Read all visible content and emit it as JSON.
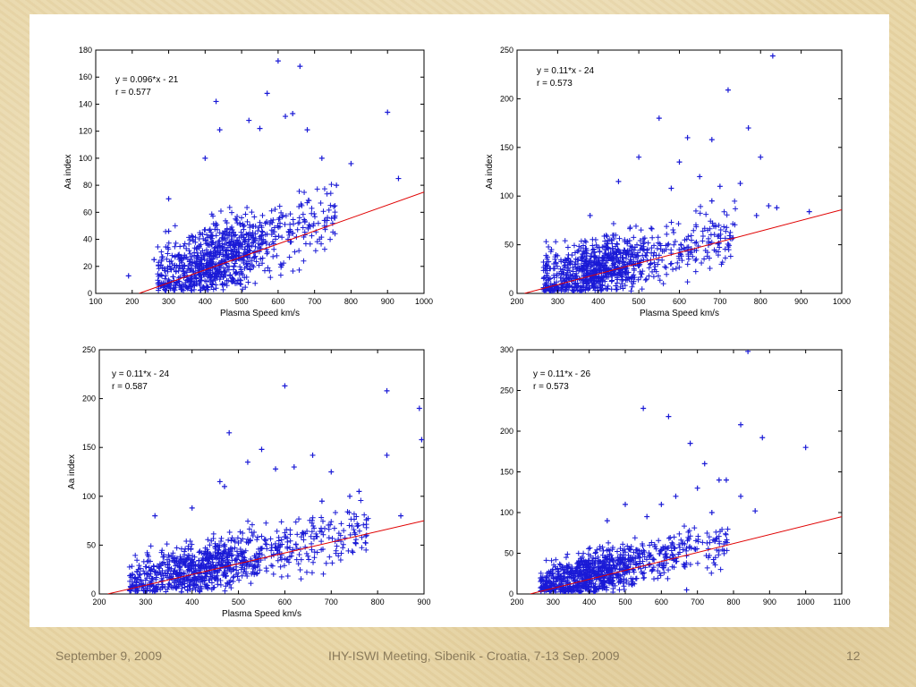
{
  "footer": {
    "date": "September 9, 2009",
    "event": "IHY-ISWI Meeting, Sibenik - Croatia, 7-13 Sep. 2009",
    "page": "12"
  },
  "colors": {
    "marker": "#1a1ad6",
    "fit_line": "#e00000",
    "axis": "#000000"
  },
  "chart_data": [
    {
      "type": "scatter",
      "xlabel": "Plasma Speed km/s",
      "ylabel": "Aa index",
      "xlim": [
        100,
        1000
      ],
      "ylim": [
        0,
        180
      ],
      "xticks": [
        100,
        200,
        300,
        400,
        500,
        600,
        700,
        800,
        900,
        1000
      ],
      "yticks": [
        0,
        20,
        40,
        60,
        80,
        100,
        120,
        140,
        160,
        180
      ],
      "annotation": [
        "y = 0.096*x - 21",
        "r = 0.577"
      ],
      "fit": {
        "slope": 0.096,
        "intercept": -21
      },
      "cloud": {
        "x_min": 270,
        "x_max": 760,
        "x_mode": 430,
        "spread": 16
      },
      "outliers": [
        [
          190,
          13
        ],
        [
          260,
          25
        ],
        [
          300,
          46
        ],
        [
          400,
          100
        ],
        [
          430,
          142
        ],
        [
          440,
          121
        ],
        [
          520,
          128
        ],
        [
          550,
          122
        ],
        [
          570,
          148
        ],
        [
          600,
          172
        ],
        [
          620,
          131
        ],
        [
          640,
          133
        ],
        [
          660,
          168
        ],
        [
          680,
          121
        ],
        [
          720,
          100
        ],
        [
          800,
          96
        ],
        [
          900,
          134
        ],
        [
          930,
          85
        ],
        [
          300,
          70
        ],
        [
          760,
          80
        ]
      ]
    },
    {
      "type": "scatter",
      "xlabel": "Plasma Speed km/s",
      "ylabel": "Aa index",
      "xlim": [
        200,
        1000
      ],
      "ylim": [
        0,
        250
      ],
      "xticks": [
        200,
        300,
        400,
        500,
        600,
        700,
        800,
        900,
        1000
      ],
      "yticks": [
        0,
        50,
        100,
        150,
        200,
        250
      ],
      "annotation": [
        "y = 0.11*x - 24",
        "r = 0.573"
      ],
      "fit": {
        "slope": 0.11,
        "intercept": -24
      },
      "cloud": {
        "x_min": 265,
        "x_max": 740,
        "x_mode": 400,
        "spread": 18
      },
      "outliers": [
        [
          550,
          180
        ],
        [
          620,
          160
        ],
        [
          680,
          158
        ],
        [
          720,
          209
        ],
        [
          770,
          170
        ],
        [
          800,
          140
        ],
        [
          820,
          90
        ],
        [
          840,
          88
        ],
        [
          830,
          244
        ],
        [
          920,
          84
        ],
        [
          500,
          140
        ],
        [
          600,
          135
        ],
        [
          650,
          120
        ],
        [
          700,
          110
        ],
        [
          750,
          113
        ],
        [
          580,
          108
        ],
        [
          450,
          115
        ],
        [
          380,
          80
        ],
        [
          680,
          95
        ],
        [
          790,
          80
        ]
      ]
    },
    {
      "type": "scatter",
      "xlabel": "Plasma Speed km/s",
      "ylabel": "Aa index",
      "xlim": [
        200,
        900
      ],
      "ylim": [
        0,
        250
      ],
      "xticks": [
        200,
        300,
        400,
        500,
        600,
        700,
        800,
        900
      ],
      "yticks": [
        0,
        50,
        100,
        150,
        200,
        250
      ],
      "annotation": [
        "y = 0.11*x - 24",
        "r = 0.587"
      ],
      "fit": {
        "slope": 0.11,
        "intercept": -24
      },
      "cloud": {
        "x_min": 265,
        "x_max": 780,
        "x_mode": 420,
        "spread": 16
      },
      "outliers": [
        [
          600,
          213
        ],
        [
          480,
          165
        ],
        [
          550,
          148
        ],
        [
          460,
          115
        ],
        [
          520,
          135
        ],
        [
          580,
          128
        ],
        [
          620,
          130
        ],
        [
          660,
          142
        ],
        [
          700,
          125
        ],
        [
          820,
          142
        ],
        [
          820,
          208
        ],
        [
          890,
          190
        ],
        [
          895,
          158
        ],
        [
          850,
          80
        ],
        [
          760,
          105
        ],
        [
          320,
          80
        ],
        [
          400,
          88
        ],
        [
          470,
          110
        ],
        [
          740,
          100
        ],
        [
          680,
          95
        ]
      ]
    },
    {
      "type": "scatter",
      "xlabel": "",
      "ylabel": "",
      "xlim": [
        200,
        1100
      ],
      "ylim": [
        0,
        300
      ],
      "xticks": [
        200,
        300,
        400,
        500,
        600,
        700,
        800,
        900,
        1000,
        1100
      ],
      "yticks": [
        0,
        50,
        100,
        150,
        200,
        250,
        300
      ],
      "annotation": [
        "y = 0.11*x - 26",
        "r = 0.573"
      ],
      "fit": {
        "slope": 0.11,
        "intercept": -26
      },
      "cloud": {
        "x_min": 265,
        "x_max": 790,
        "x_mode": 420,
        "spread": 16
      },
      "outliers": [
        [
          550,
          228
        ],
        [
          620,
          218
        ],
        [
          680,
          185
        ],
        [
          720,
          160
        ],
        [
          760,
          140
        ],
        [
          820,
          208
        ],
        [
          880,
          192
        ],
        [
          1000,
          180
        ],
        [
          860,
          102
        ],
        [
          780,
          140
        ],
        [
          640,
          120
        ],
        [
          600,
          110
        ],
        [
          500,
          110
        ],
        [
          820,
          120
        ],
        [
          840,
          298
        ],
        [
          670,
          5
        ],
        [
          450,
          90
        ],
        [
          700,
          130
        ],
        [
          740,
          100
        ],
        [
          560,
          95
        ]
      ]
    }
  ]
}
